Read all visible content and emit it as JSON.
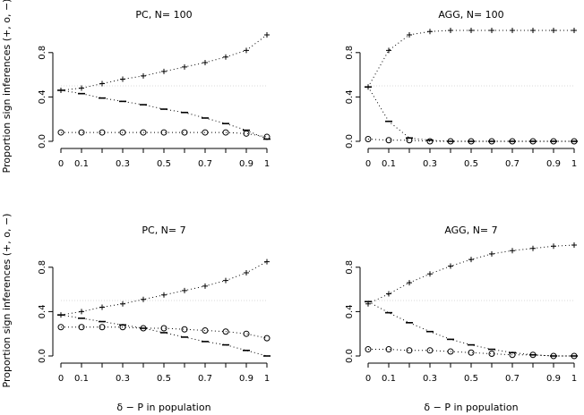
{
  "figure": {
    "ylabel": "Proportion sign inferences (+, o, −)",
    "xlabel": "δ − P in population"
  },
  "chart_data": [
    {
      "type": "line",
      "title": "PC, N= 100",
      "x": [
        0,
        0.1,
        0.2,
        0.3,
        0.4,
        0.5,
        0.6,
        0.7,
        0.8,
        0.9,
        1
      ],
      "xticks": [
        "0",
        "0.1",
        "0.3",
        "0.5",
        "0.7",
        "0.9",
        "1"
      ],
      "xtick_values": [
        0,
        0.1,
        0.3,
        0.5,
        0.7,
        0.9,
        1
      ],
      "yticks": [
        "0.0",
        "0.4",
        "0.8"
      ],
      "ytick_values": [
        0,
        0.4,
        0.8
      ],
      "ylim": [
        0,
        1
      ],
      "reference_line": 0.5,
      "series": [
        {
          "marker": "+",
          "values": [
            0.46,
            0.48,
            0.52,
            0.56,
            0.59,
            0.63,
            0.67,
            0.71,
            0.76,
            0.82,
            0.96
          ]
        },
        {
          "marker": "−",
          "values": [
            0.46,
            0.43,
            0.39,
            0.36,
            0.33,
            0.29,
            0.26,
            0.21,
            0.16,
            0.1,
            0.02
          ]
        },
        {
          "marker": "o",
          "values": [
            0.08,
            0.08,
            0.08,
            0.08,
            0.08,
            0.08,
            0.08,
            0.08,
            0.08,
            0.07,
            0.04
          ]
        }
      ]
    },
    {
      "type": "line",
      "title": "AGG, N= 100",
      "x": [
        0,
        0.1,
        0.2,
        0.3,
        0.4,
        0.5,
        0.6,
        0.7,
        0.8,
        0.9,
        1
      ],
      "xticks": [
        "0",
        "0.1",
        "0.3",
        "0.5",
        "0.7",
        "0.9",
        "1"
      ],
      "xtick_values": [
        0,
        0.1,
        0.3,
        0.5,
        0.7,
        0.9,
        1
      ],
      "yticks": [
        "0.0",
        "0.4",
        "0.8"
      ],
      "ytick_values": [
        0,
        0.4,
        0.8
      ],
      "ylim": [
        0,
        1
      ],
      "reference_line": 0.5,
      "series": [
        {
          "marker": "+",
          "values": [
            0.49,
            0.82,
            0.96,
            0.99,
            1.0,
            1.0,
            1.0,
            1.0,
            1.0,
            1.0,
            1.0
          ]
        },
        {
          "marker": "−",
          "values": [
            0.49,
            0.18,
            0.03,
            0.01,
            0.0,
            0.0,
            0.0,
            0.0,
            0.0,
            0.0,
            0.0
          ]
        },
        {
          "marker": "o",
          "values": [
            0.02,
            0.01,
            0.01,
            0.0,
            0.0,
            0.0,
            0.0,
            0.0,
            0.0,
            0.0,
            0.0
          ]
        }
      ]
    },
    {
      "type": "line",
      "title": "PC, N= 7",
      "x": [
        0,
        0.1,
        0.2,
        0.3,
        0.4,
        0.5,
        0.6,
        0.7,
        0.8,
        0.9,
        1
      ],
      "xticks": [
        "0",
        "0.1",
        "0.3",
        "0.5",
        "0.7",
        "0.9",
        "1"
      ],
      "xtick_values": [
        0,
        0.1,
        0.3,
        0.5,
        0.7,
        0.9,
        1
      ],
      "yticks": [
        "0.0",
        "0.4",
        "0.8"
      ],
      "ytick_values": [
        0,
        0.4,
        0.8
      ],
      "ylim": [
        0,
        1
      ],
      "reference_line": 0.5,
      "series": [
        {
          "marker": "+",
          "values": [
            0.37,
            0.4,
            0.44,
            0.47,
            0.51,
            0.55,
            0.59,
            0.63,
            0.68,
            0.75,
            0.85
          ]
        },
        {
          "marker": "−",
          "values": [
            0.37,
            0.34,
            0.31,
            0.28,
            0.25,
            0.21,
            0.17,
            0.13,
            0.1,
            0.05,
            0.0
          ]
        },
        {
          "marker": "o",
          "values": [
            0.26,
            0.26,
            0.26,
            0.26,
            0.25,
            0.25,
            0.24,
            0.23,
            0.22,
            0.2,
            0.16
          ]
        }
      ]
    },
    {
      "type": "line",
      "title": "AGG, N= 7",
      "x": [
        0,
        0.1,
        0.2,
        0.3,
        0.4,
        0.5,
        0.6,
        0.7,
        0.8,
        0.9,
        1
      ],
      "xticks": [
        "0",
        "0.1",
        "0.3",
        "0.5",
        "0.7",
        "0.9",
        "1"
      ],
      "xtick_values": [
        0,
        0.1,
        0.3,
        0.5,
        0.7,
        0.9,
        1
      ],
      "yticks": [
        "0.0",
        "0.4",
        "0.8"
      ],
      "ytick_values": [
        0,
        0.4,
        0.8
      ],
      "ylim": [
        0,
        1
      ],
      "reference_line": 0.5,
      "series": [
        {
          "marker": "+",
          "values": [
            0.47,
            0.56,
            0.66,
            0.74,
            0.81,
            0.87,
            0.92,
            0.95,
            0.97,
            0.99,
            1.0
          ]
        },
        {
          "marker": "−",
          "values": [
            0.49,
            0.39,
            0.3,
            0.22,
            0.15,
            0.1,
            0.06,
            0.03,
            0.01,
            0.0,
            0.0
          ]
        },
        {
          "marker": "o",
          "values": [
            0.06,
            0.06,
            0.05,
            0.05,
            0.04,
            0.03,
            0.02,
            0.01,
            0.01,
            0.0,
            0.0
          ]
        }
      ]
    }
  ]
}
